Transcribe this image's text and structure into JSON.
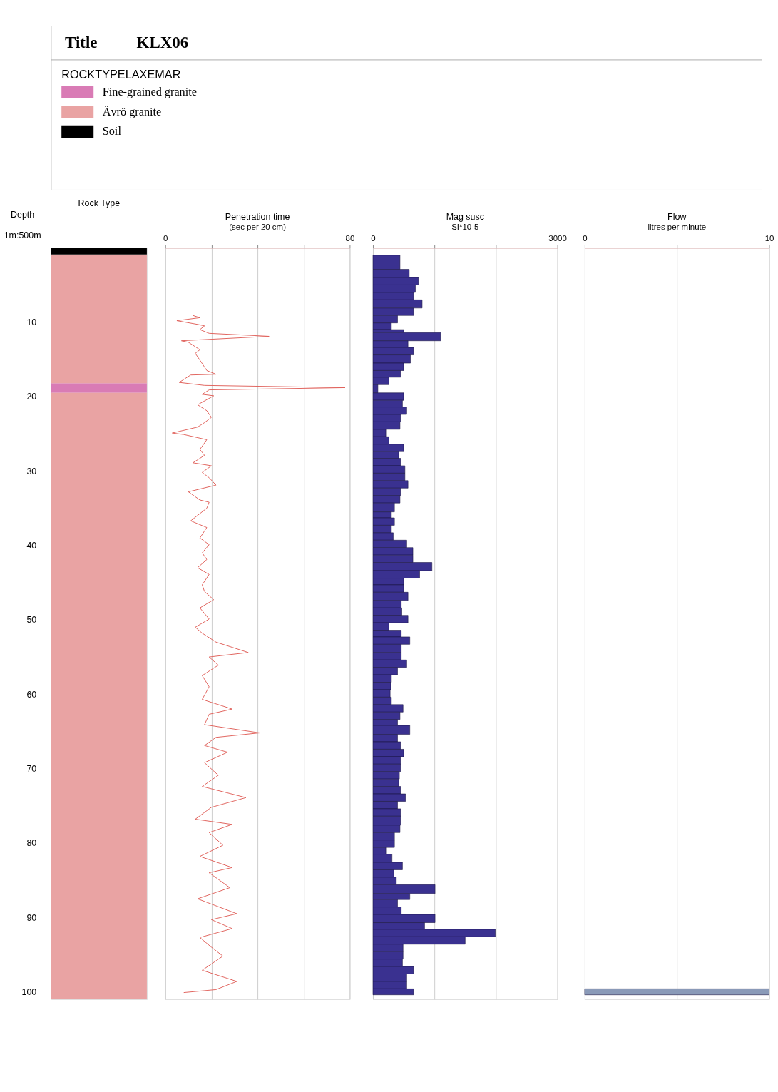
{
  "chart_data": [
    {
      "type": "other",
      "title": "KLX06",
      "annotations": [
        "Title"
      ]
    },
    {
      "type": "bar",
      "title": "Rock Type",
      "ylabel": "Depth",
      "annotations": [
        "1m:500m"
      ],
      "categories": [
        null
      ],
      "ylim": [
        101,
        0
      ],
      "yticks": [
        10,
        20,
        30,
        40,
        50,
        60,
        70,
        80,
        90,
        100
      ],
      "tick_labels": "y",
      "legend_title": "ROCKTYPELAXEMAR",
      "legend": "top left",
      "series": [
        {
          "name": "Fine-grained granite",
          "color": "#d97bb5",
          "values": [
            1.3
          ],
          "base": [
            18.2
          ]
        },
        {
          "name": "Ävrö granite",
          "color": "#e9a3a3",
          "values": [
            17.3
          ],
          "base": [
            0.9
          ]
        },
        {
          "name": "Soil",
          "color": "#000000",
          "values": [
            0.9
          ],
          "base": [
            0
          ]
        },
        {
          "color": "#e9a3a3",
          "values": [
            81.5
          ],
          "base": [
            19.5
          ]
        }
      ]
    },
    {
      "type": "line",
      "orientation": "horizontal",
      "title": "Penetration time",
      "subtitle": "(sec per 20 cm)",
      "color": "#e0605a",
      "xlim": [
        0,
        80
      ],
      "xticks": [
        0,
        {
          "value": 20,
          "label": null
        },
        {
          "value": 40,
          "label": null
        },
        {
          "value": 60,
          "label": null
        },
        80
      ],
      "ylim": [
        101,
        0
      ],
      "tick_labels": "x",
      "grid": "x",
      "x": [
        9.1,
        9.4,
        9.8,
        10.3,
        10.5,
        11.0,
        11.5,
        11.9,
        12.5,
        12.7,
        13.7,
        14.2,
        15.1,
        16.5,
        17.0,
        17.1,
        18.1,
        18.5,
        18.8,
        19.1,
        19.7,
        19.9,
        21.1,
        21.9,
        22.8,
        23.5,
        24.1,
        24.9,
        25.1,
        25.8,
        27.1,
        27.9,
        28.9,
        29.3,
        30.2,
        30.9,
        31.9,
        32.8,
        33.9,
        34.2,
        35.0,
        36.7,
        37.6,
        39.0,
        39.9,
        41.0,
        41.9,
        43.0,
        43.9,
        45.3,
        46.2,
        47.3,
        48.4,
        49.9,
        51.0,
        51.8,
        53.0,
        54.4,
        55.0,
        56.1,
        57.5,
        59.0,
        60.7,
        62.0,
        62.7,
        64.1,
        65.2,
        65.8,
        66.9,
        67.8,
        69.2,
        70.9,
        72.4,
        73.9,
        75.2,
        76.8,
        77.5,
        78.6,
        80.3,
        81.8,
        83.3,
        84.0,
        86.0,
        87.5,
        89.5,
        90.3,
        91.5,
        92.7,
        94.0,
        95.2,
        97.1,
        98.6,
        99.7,
        100.1
      ],
      "values": [
        12,
        15,
        5,
        14,
        17,
        15,
        19,
        45,
        7,
        10,
        15,
        13,
        15,
        18,
        22,
        11,
        6,
        17,
        78,
        19,
        16,
        21,
        14,
        18,
        20,
        17,
        14,
        3,
        8,
        18,
        15,
        17,
        12,
        20,
        16,
        19,
        22,
        10,
        15,
        19,
        18,
        11,
        18,
        15,
        19,
        16,
        18,
        14,
        19,
        16,
        17,
        21,
        15,
        19,
        13,
        16,
        22,
        36,
        19,
        23,
        16,
        19,
        16,
        29,
        19,
        17,
        41,
        22,
        17,
        27,
        17,
        23,
        16,
        35,
        20,
        13,
        29,
        19,
        25,
        15,
        29,
        19,
        28,
        14,
        31,
        20,
        29,
        15,
        20,
        25,
        16,
        31,
        22,
        8
      ]
    },
    {
      "type": "histogram",
      "orientation": "horizontal",
      "title": "Mag susc",
      "subtitle": "SI*10-5",
      "color": "#3a3190",
      "xlim": [
        0,
        3000
      ],
      "xticks": [
        0,
        {
          "value": 1000,
          "label": null
        },
        {
          "value": 2000,
          "label": null
        },
        3000
      ],
      "ylim": [
        101,
        0
      ],
      "tick_labels": "x",
      "grid": "x",
      "bins": [
        1.0,
        2.9,
        4.0,
        5.0,
        6.0,
        7.0,
        8.1,
        9.1,
        10.1,
        11.0,
        11.4,
        12.5,
        13.4,
        14.4,
        15.5,
        16.5,
        17.4,
        18.4,
        19.5,
        20.5,
        21.4,
        22.4,
        23.4,
        24.4,
        25.4,
        26.4,
        27.4,
        28.3,
        29.3,
        30.3,
        31.3,
        32.3,
        33.3,
        34.3,
        35.5,
        36.3,
        37.3,
        38.3,
        39.3,
        40.3,
        41.3,
        42.3,
        43.4,
        44.4,
        45.3,
        46.3,
        47.4,
        48.4,
        49.4,
        50.4,
        51.4,
        52.3,
        53.3,
        54.4,
        55.4,
        56.4,
        57.4,
        58.4,
        59.4,
        60.4,
        61.4,
        62.4,
        63.4,
        64.2,
        65.4,
        66.4,
        67.4,
        68.4,
        69.4,
        70.4,
        71.4,
        72.4,
        73.4,
        74.4,
        75.4,
        76.4,
        77.6,
        78.6,
        79.6,
        80.6,
        81.5,
        82.6,
        83.6,
        84.6,
        85.6,
        86.8,
        87.6,
        88.6,
        89.6,
        90.7,
        91.6,
        92.6,
        93.6,
        94.6,
        95.6,
        96.6,
        97.6,
        98.6,
        99.6,
        100.4
      ],
      "values": [
        440,
        590,
        740,
        690,
        660,
        800,
        660,
        400,
        300,
        500,
        1100,
        570,
        660,
        610,
        500,
        450,
        260,
        80,
        500,
        480,
        550,
        450,
        440,
        210,
        260,
        500,
        420,
        450,
        520,
        520,
        570,
        450,
        440,
        350,
        300,
        350,
        300,
        330,
        550,
        650,
        650,
        960,
        760,
        500,
        500,
        570,
        460,
        470,
        570,
        260,
        460,
        600,
        460,
        460,
        550,
        400,
        300,
        290,
        280,
        300,
        490,
        440,
        400,
        600,
        400,
        450,
        500,
        450,
        450,
        430,
        420,
        450,
        530,
        400,
        450,
        450,
        440,
        350,
        350,
        210,
        310,
        480,
        340,
        380,
        1010,
        600,
        400,
        460,
        1010,
        840,
        1990,
        1500,
        490,
        490,
        480,
        660,
        550,
        550,
        660
      ]
    },
    {
      "type": "histogram",
      "orientation": "horizontal",
      "title": "Flow",
      "subtitle": "litres per minute",
      "color": "#8a9ab8",
      "xlim": [
        0,
        10
      ],
      "xticks": [
        0,
        {
          "value": 5,
          "label": null
        },
        10
      ],
      "ylim": [
        101,
        0
      ],
      "tick_labels": "x",
      "grid": "x",
      "bins": [
        99.6,
        100.4
      ],
      "values": [
        10
      ]
    }
  ]
}
